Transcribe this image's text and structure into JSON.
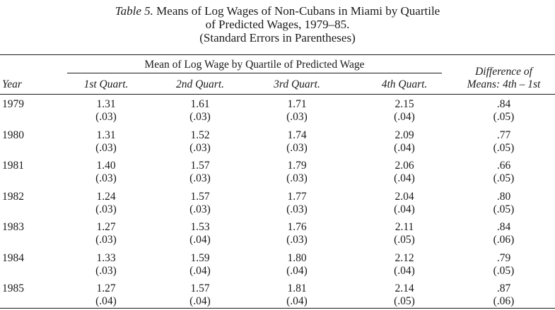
{
  "caption": {
    "label": "Table 5.",
    "line1": "Means of Log Wages of Non-Cubans in Miami by Quartile",
    "line2": "of Predicted Wages, 1979–85.",
    "line3": "(Standard Errors in Parentheses)"
  },
  "header": {
    "spanner": "Mean of Log Wage by Quartile of Predicted Wage",
    "year": "Year",
    "q1": "1st Quart.",
    "q2": "2nd Quart.",
    "q3": "3rd Quart.",
    "q4": "4th Quart.",
    "diff_line1": "Difference of",
    "diff_line2": "Means: 4th – 1st"
  },
  "rows": [
    {
      "year": "1979",
      "q1": "1.31",
      "q1_se": "(.03)",
      "q2": "1.61",
      "q2_se": "(.03)",
      "q3": "1.71",
      "q3_se": "(.03)",
      "q4": "2.15",
      "q4_se": "(.04)",
      "diff": ".84",
      "diff_se": "(.05)"
    },
    {
      "year": "1980",
      "q1": "1.31",
      "q1_se": "(.03)",
      "q2": "1.52",
      "q2_se": "(.03)",
      "q3": "1.74",
      "q3_se": "(.03)",
      "q4": "2.09",
      "q4_se": "(.04)",
      "diff": ".77",
      "diff_se": "(.05)"
    },
    {
      "year": "1981",
      "q1": "1.40",
      "q1_se": "(.03)",
      "q2": "1.57",
      "q2_se": "(.03)",
      "q3": "1.79",
      "q3_se": "(.03)",
      "q4": "2.06",
      "q4_se": "(.04)",
      "diff": ".66",
      "diff_se": "(.05)"
    },
    {
      "year": "1982",
      "q1": "1.24",
      "q1_se": "(.03)",
      "q2": "1.57",
      "q2_se": "(.03)",
      "q3": "1.77",
      "q3_se": "(.03)",
      "q4": "2.04",
      "q4_se": "(.04)",
      "diff": ".80",
      "diff_se": "(.05)"
    },
    {
      "year": "1983",
      "q1": "1.27",
      "q1_se": "(.03)",
      "q2": "1.53",
      "q2_se": "(.04)",
      "q3": "1.76",
      "q3_se": "(.03)",
      "q4": "2.11",
      "q4_se": "(.05)",
      "diff": ".84",
      "diff_se": "(.06)"
    },
    {
      "year": "1984",
      "q1": "1.33",
      "q1_se": "(.03)",
      "q2": "1.59",
      "q2_se": "(.04)",
      "q3": "1.80",
      "q3_se": "(.04)",
      "q4": "2.12",
      "q4_se": "(.04)",
      "diff": ".79",
      "diff_se": "(.05)"
    },
    {
      "year": "1985",
      "q1": "1.27",
      "q1_se": "(.04)",
      "q2": "1.57",
      "q2_se": "(.04)",
      "q3": "1.81",
      "q3_se": "(.04)",
      "q4": "2.14",
      "q4_se": "(.05)",
      "diff": ".87",
      "diff_se": "(.06)"
    }
  ]
}
